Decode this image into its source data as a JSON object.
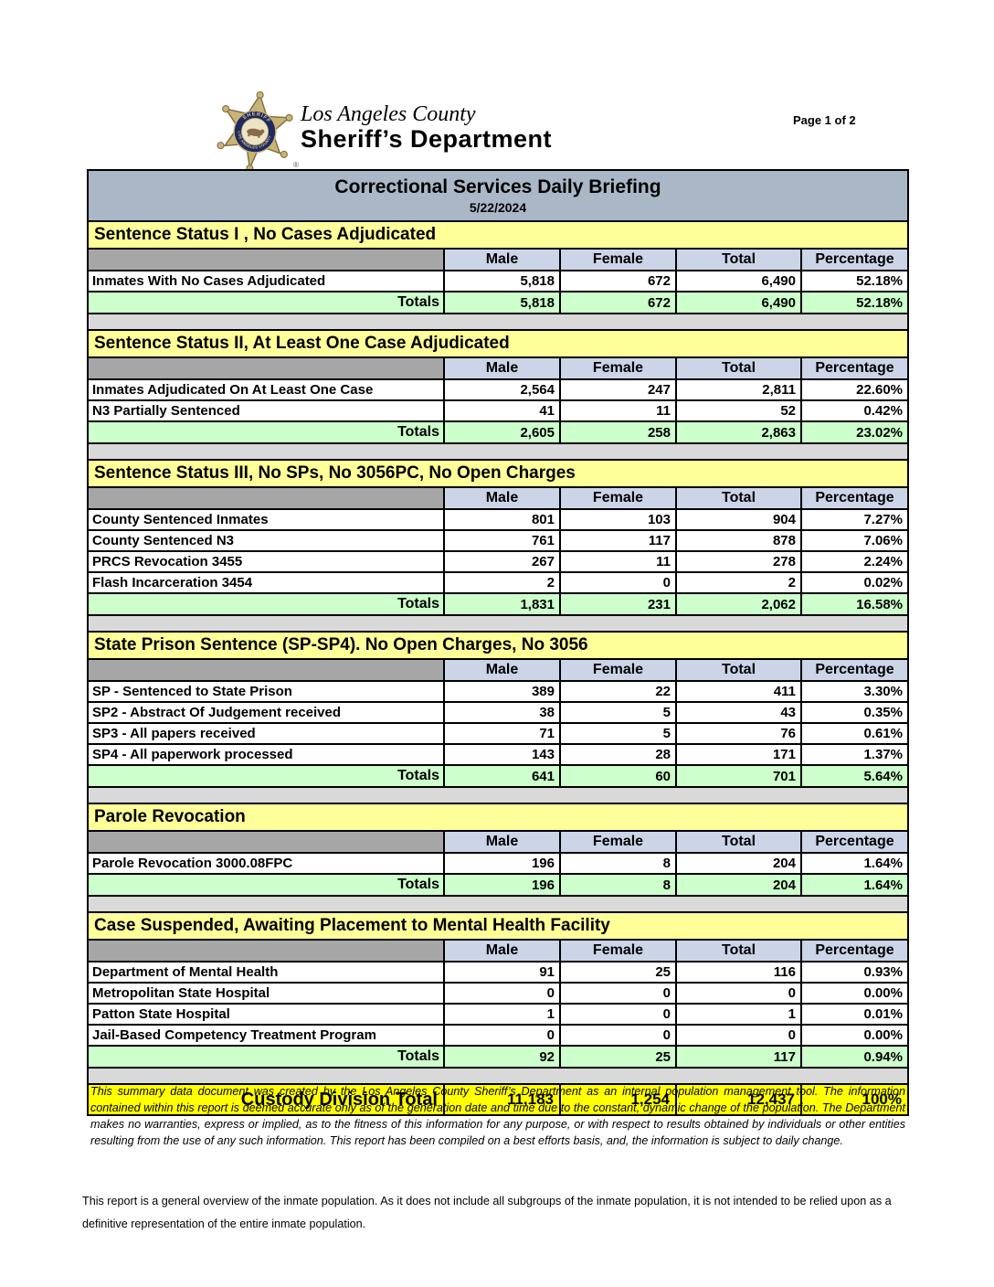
{
  "header": {
    "logo_line1": "Los Angeles County",
    "logo_line2": "Sheriff’s Department",
    "registered_mark": "®",
    "page_label": "Page 1 of 2"
  },
  "report": {
    "title": "Correctional Services Daily Briefing",
    "date": "5/22/2024",
    "columns": [
      "Male",
      "Female",
      "Total",
      "Percentage"
    ],
    "totals_label": "Totals",
    "sections": [
      {
        "title": "Sentence Status I , No Cases Adjudicated",
        "rows": [
          {
            "label": "Inmates With No Cases Adjudicated",
            "male": "5,818",
            "female": "672",
            "total": "6,490",
            "percentage": "52.18%"
          }
        ],
        "totals": {
          "male": "5,818",
          "female": "672",
          "total": "6,490",
          "percentage": "52.18%"
        }
      },
      {
        "title": "Sentence Status II, At Least One Case Adjudicated",
        "rows": [
          {
            "label": "Inmates Adjudicated On At Least One Case",
            "male": "2,564",
            "female": "247",
            "total": "2,811",
            "percentage": "22.60%"
          },
          {
            "label": "N3 Partially Sentenced",
            "male": "41",
            "female": "11",
            "total": "52",
            "percentage": "0.42%"
          }
        ],
        "totals": {
          "male": "2,605",
          "female": "258",
          "total": "2,863",
          "percentage": "23.02%"
        }
      },
      {
        "title": "Sentence Status III, No SPs, No 3056PC, No Open Charges",
        "rows": [
          {
            "label": "County Sentenced Inmates",
            "male": "801",
            "female": "103",
            "total": "904",
            "percentage": "7.27%"
          },
          {
            "label": "County Sentenced N3",
            "male": "761",
            "female": "117",
            "total": "878",
            "percentage": "7.06%"
          },
          {
            "label": "PRCS Revocation 3455",
            "male": "267",
            "female": "11",
            "total": "278",
            "percentage": "2.24%"
          },
          {
            "label": "Flash Incarceration 3454",
            "male": "2",
            "female": "0",
            "total": "2",
            "percentage": "0.02%"
          }
        ],
        "totals": {
          "male": "1,831",
          "female": "231",
          "total": "2,062",
          "percentage": "16.58%"
        }
      },
      {
        "title": "State Prison Sentence (SP-SP4). No Open Charges, No 3056",
        "rows": [
          {
            "label": "SP - Sentenced to State Prison",
            "male": "389",
            "female": "22",
            "total": "411",
            "percentage": "3.30%"
          },
          {
            "label": "SP2 - Abstract Of Judgement received",
            "male": "38",
            "female": "5",
            "total": "43",
            "percentage": "0.35%"
          },
          {
            "label": "SP3 - All papers received",
            "male": "71",
            "female": "5",
            "total": "76",
            "percentage": "0.61%"
          },
          {
            "label": "SP4 - All paperwork processed",
            "male": "143",
            "female": "28",
            "total": "171",
            "percentage": "1.37%"
          }
        ],
        "totals": {
          "male": "641",
          "female": "60",
          "total": "701",
          "percentage": "5.64%"
        }
      },
      {
        "title": "Parole Revocation",
        "rows": [
          {
            "label": "Parole Revocation 3000.08FPC",
            "male": "196",
            "female": "8",
            "total": "204",
            "percentage": "1.64%"
          }
        ],
        "totals": {
          "male": "196",
          "female": "8",
          "total": "204",
          "percentage": "1.64%"
        }
      },
      {
        "title": "Case Suspended, Awaiting Placement to Mental Health Facility",
        "rows": [
          {
            "label": "Department of Mental Health",
            "male": "91",
            "female": "25",
            "total": "116",
            "percentage": "0.93%"
          },
          {
            "label": "Metropolitan State Hospital",
            "male": "0",
            "female": "0",
            "total": "0",
            "percentage": "0.00%"
          },
          {
            "label": "Patton State Hospital",
            "male": "1",
            "female": "0",
            "total": "1",
            "percentage": "0.01%"
          },
          {
            "label": "Jail-Based Competency Treatment Program",
            "male": "0",
            "female": "0",
            "total": "0",
            "percentage": "0.00%"
          }
        ],
        "totals": {
          "male": "92",
          "female": "25",
          "total": "117",
          "percentage": "0.94%"
        }
      }
    ],
    "grand_total": {
      "label": "Custody Division Total",
      "male": "11,183",
      "female": "1,254",
      "total": "12,437",
      "percentage": "100%"
    }
  },
  "footer": {
    "disclaimer": "This summary data document was created by the Los Angeles County Sheriff’s Department as an internal population management tool.  The information contained within this report is deemed accurate only as of the generation date and time due to the constant, dynamic change of the population.  The Department makes no warranties, express or implied, as to the fitness of this information for any purpose, or with respect to results obtained by individuals or other entities resulting from the use of any such information.  This report has been compiled on a best efforts basis, and, the information is subject to daily change.",
    "note": "This report is a general overview of the inmate population.  As it does not include all subgroups of the inmate population, it is not intended to be relied upon as a definitive representation of the entire inmate population."
  },
  "colors": {
    "title_bar": "#a9b7c7",
    "section_header": "#ffff99",
    "column_header": "#ccd4e8",
    "totals_row": "#ccffcc",
    "grand_total_row": "#ffff00",
    "spacer": "#d9d9d9",
    "corner_cell": "#a6a6a6",
    "border": "#000000"
  }
}
